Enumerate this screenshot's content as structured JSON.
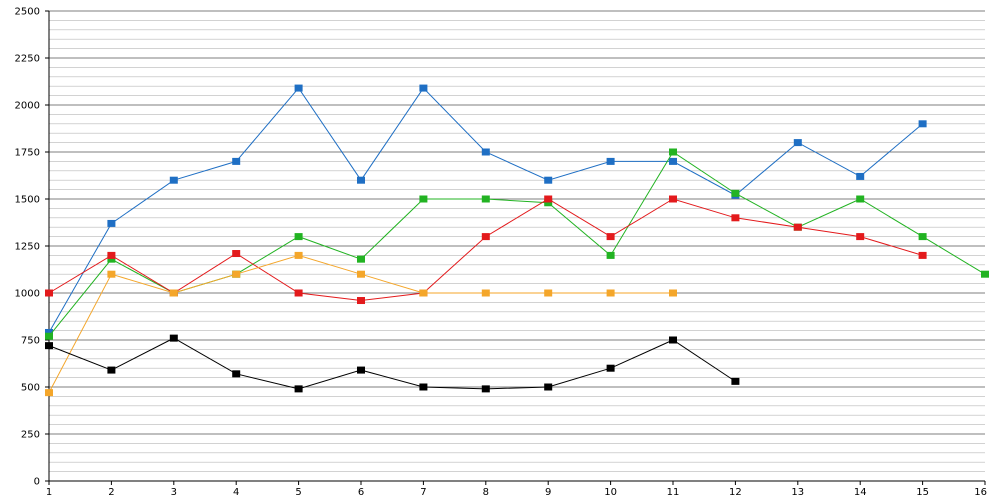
{
  "chart_data": {
    "type": "line",
    "title": "",
    "xlabel": "",
    "ylabel": "",
    "x": [
      1,
      2,
      3,
      4,
      5,
      6,
      7,
      8,
      9,
      10,
      11,
      12,
      13,
      14,
      15,
      16
    ],
    "xlim": [
      1,
      16
    ],
    "ylim": [
      0,
      2500
    ],
    "y_major_step": 250,
    "y_minor_step": 50,
    "x_tick_labels": [
      "1",
      "2",
      "3",
      "4",
      "5",
      "6",
      "7",
      "8",
      "9",
      "10",
      "11",
      "12",
      "13",
      "14",
      "15",
      "16"
    ],
    "y_tick_labels": [
      "0",
      "250",
      "500",
      "750",
      "1000",
      "1250",
      "1500",
      "1750",
      "2000",
      "2250",
      "2500"
    ],
    "grid": true,
    "legend": "none",
    "marker": "square",
    "series": [
      {
        "color": "#1f6fc4",
        "values": [
          790,
          1370,
          1600,
          1700,
          2090,
          1600,
          2090,
          1750,
          1600,
          1700,
          1700,
          1520,
          1800,
          1620,
          1900,
          null
        ]
      },
      {
        "color": "#22b322",
        "values": [
          770,
          1180,
          1000,
          1100,
          1300,
          1180,
          1500,
          1500,
          1480,
          1200,
          1750,
          1530,
          1350,
          1500,
          1300,
          1100
        ]
      },
      {
        "color": "#e31a1c",
        "values": [
          1000,
          1200,
          1000,
          1210,
          1000,
          960,
          1000,
          1300,
          1500,
          1300,
          1500,
          1400,
          1350,
          1300,
          1200,
          null
        ]
      },
      {
        "color": "#f4a62a",
        "values": [
          470,
          1100,
          1000,
          1100,
          1200,
          1100,
          1000,
          1000,
          1000,
          1000,
          1000,
          null,
          null,
          null,
          null,
          null
        ]
      },
      {
        "color": "#000000",
        "values": [
          720,
          590,
          760,
          570,
          490,
          590,
          500,
          490,
          500,
          600,
          750,
          530,
          null,
          null,
          null,
          null
        ]
      }
    ]
  }
}
